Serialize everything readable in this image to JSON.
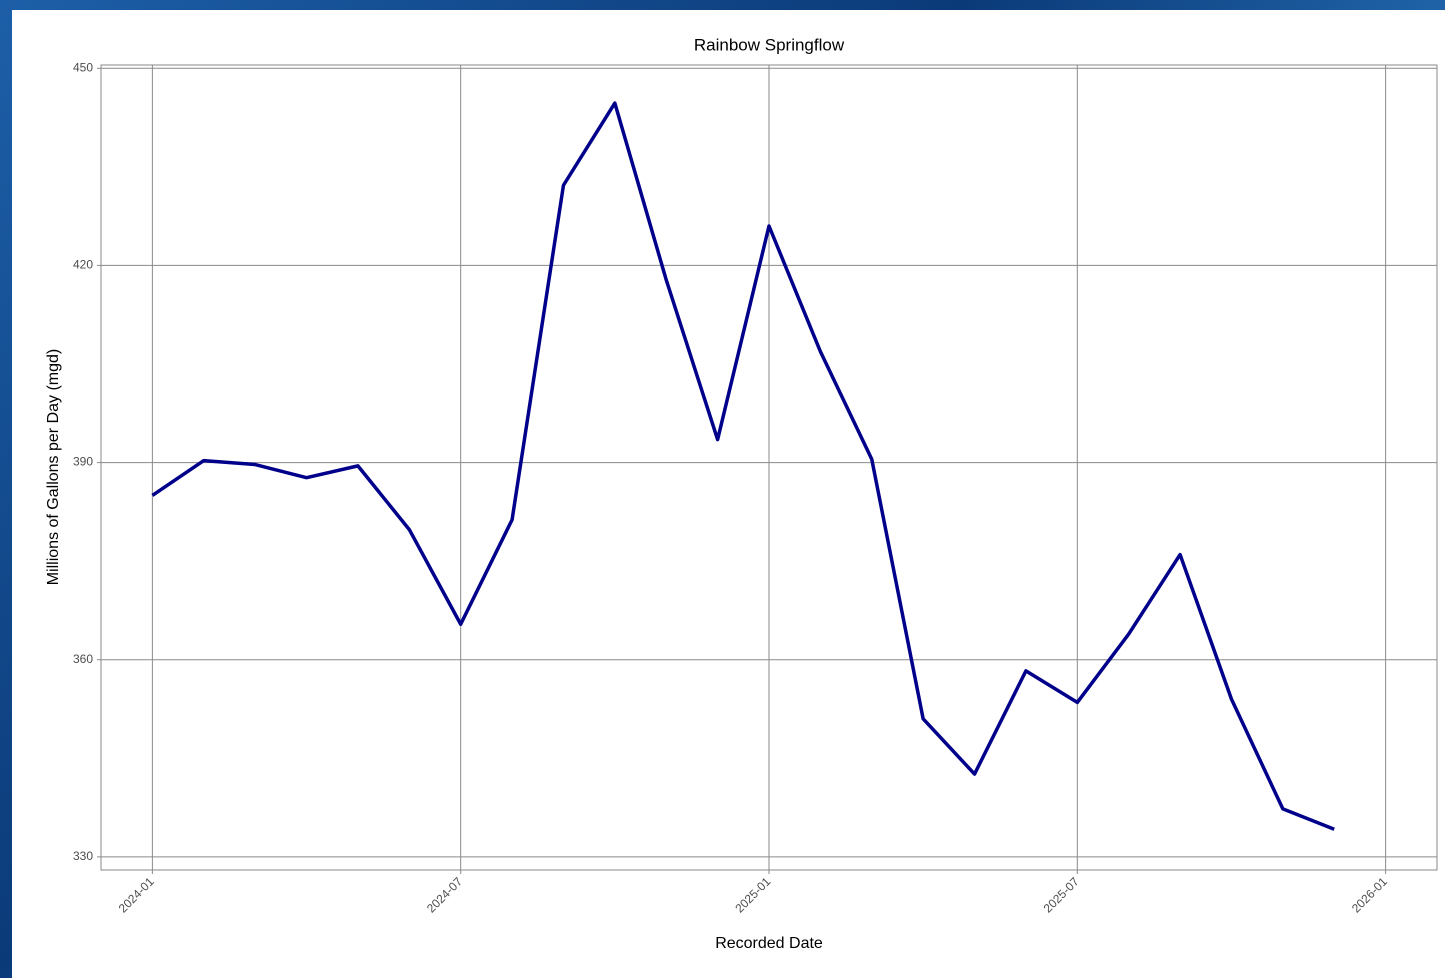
{
  "chart_data": {
    "type": "line",
    "title": "Rainbow Springflow",
    "x_label": "Recorded Date",
    "y_label": "Millions of Gallons per Day (mgd)",
    "x": [
      "2024-01",
      "2024-02",
      "2024-03",
      "2024-04",
      "2024-05",
      "2024-06",
      "2024-07",
      "2024-08",
      "2024-09",
      "2024-10",
      "2024-11",
      "2024-12",
      "2025-01",
      "2025-02",
      "2025-03",
      "2025-04",
      "2025-05",
      "2025-06",
      "2025-07",
      "2025-08",
      "2025-09",
      "2025-10",
      "2025-11",
      "2025-12"
    ],
    "values": [
      385,
      390.3,
      389.7,
      387.7,
      389.5,
      379.8,
      365.4,
      381.3,
      432.2,
      444.7,
      417.8,
      393.5,
      426,
      406.9,
      390.5,
      351,
      342.6,
      358.3,
      353.5,
      363.9,
      376,
      354,
      337.3,
      334.2
    ],
    "color": "#00008b",
    "xlim": [
      "2023-12",
      "2026-02"
    ],
    "xticks": [
      "2024-01",
      "2024-07",
      "2025-01",
      "2025-07",
      "2026-01"
    ],
    "ylim": [
      328,
      450.5
    ],
    "yticks": [
      330,
      360,
      390,
      420,
      450
    ],
    "grid": true
  }
}
